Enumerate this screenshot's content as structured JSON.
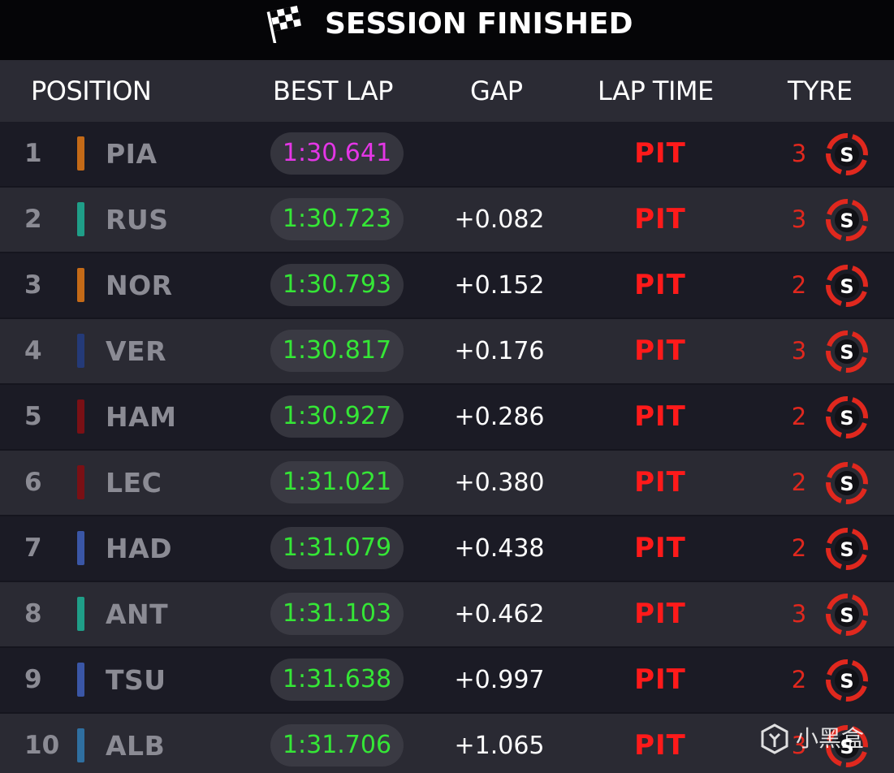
{
  "title": "SESSION FINISHED",
  "headers": {
    "position": "POSITION",
    "best_lap": "BEST LAP",
    "gap": "GAP",
    "lap_time": "LAP TIME",
    "tyre": "TYRE"
  },
  "icons": {
    "flag": "chequered-flag-icon",
    "tyre": "soft-tyre-icon"
  },
  "colors": {
    "fastest_lap": "#e436e6",
    "best_lap": "#35e636",
    "pit": "#ff1a1a",
    "tyre_soft": "#e0281e"
  },
  "rows": [
    {
      "position": "1",
      "driver": "PIA",
      "team_color": "#c46a17",
      "best_lap": "1:30.641",
      "fastest": true,
      "gap": "",
      "lap_time": "PIT",
      "tyre_laps": "3",
      "tyre_compound": "S"
    },
    {
      "position": "2",
      "driver": "RUS",
      "team_color": "#1f9e88",
      "best_lap": "1:30.723",
      "fastest": false,
      "gap": "+0.082",
      "lap_time": "PIT",
      "tyre_laps": "3",
      "tyre_compound": "S"
    },
    {
      "position": "3",
      "driver": "NOR",
      "team_color": "#c46a17",
      "best_lap": "1:30.793",
      "fastest": false,
      "gap": "+0.152",
      "lap_time": "PIT",
      "tyre_laps": "2",
      "tyre_compound": "S"
    },
    {
      "position": "4",
      "driver": "VER",
      "team_color": "#243a78",
      "best_lap": "1:30.817",
      "fastest": false,
      "gap": "+0.176",
      "lap_time": "PIT",
      "tyre_laps": "3",
      "tyre_compound": "S"
    },
    {
      "position": "5",
      "driver": "HAM",
      "team_color": "#7a1015",
      "best_lap": "1:30.927",
      "fastest": false,
      "gap": "+0.286",
      "lap_time": "PIT",
      "tyre_laps": "2",
      "tyre_compound": "S"
    },
    {
      "position": "6",
      "driver": "LEC",
      "team_color": "#7a1015",
      "best_lap": "1:31.021",
      "fastest": false,
      "gap": "+0.380",
      "lap_time": "PIT",
      "tyre_laps": "2",
      "tyre_compound": "S"
    },
    {
      "position": "7",
      "driver": "HAD",
      "team_color": "#3a56a6",
      "best_lap": "1:31.079",
      "fastest": false,
      "gap": "+0.438",
      "lap_time": "PIT",
      "tyre_laps": "2",
      "tyre_compound": "S"
    },
    {
      "position": "8",
      "driver": "ANT",
      "team_color": "#1f9e88",
      "best_lap": "1:31.103",
      "fastest": false,
      "gap": "+0.462",
      "lap_time": "PIT",
      "tyre_laps": "3",
      "tyre_compound": "S"
    },
    {
      "position": "9",
      "driver": "TSU",
      "team_color": "#3a56a6",
      "best_lap": "1:31.638",
      "fastest": false,
      "gap": "+0.997",
      "lap_time": "PIT",
      "tyre_laps": "2",
      "tyre_compound": "S"
    },
    {
      "position": "10",
      "driver": "ALB",
      "team_color": "#2f6fa0",
      "best_lap": "1:31.706",
      "fastest": false,
      "gap": "+1.065",
      "lap_time": "PIT",
      "tyre_laps": "3",
      "tyre_compound": "S"
    }
  ],
  "watermark": {
    "text": "小黑盒",
    "icon": "heybox-logo-icon"
  }
}
